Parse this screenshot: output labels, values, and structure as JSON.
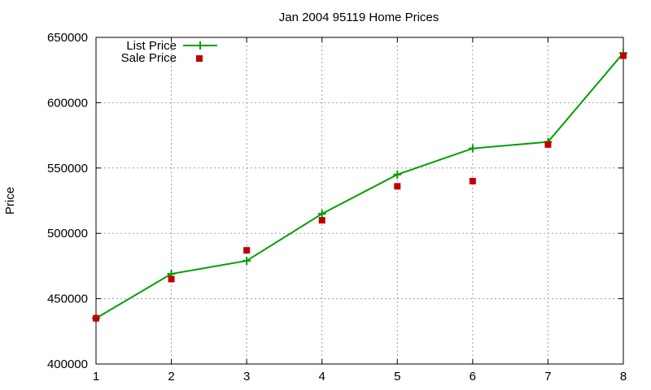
{
  "chart_data": {
    "type": "line",
    "title": "Jan 2004 95119 Home Prices",
    "xlabel": "",
    "ylabel": "Price",
    "x": [
      1,
      2,
      3,
      4,
      5,
      6,
      7,
      8
    ],
    "xlim": [
      1,
      8
    ],
    "ylim": [
      400000,
      650000
    ],
    "xticks": [
      "1",
      "2",
      "3",
      "4",
      "5",
      "6",
      "7",
      "8"
    ],
    "yticks": [
      "400000",
      "450000",
      "500000",
      "550000",
      "600000",
      "650000"
    ],
    "grid": true,
    "legend_position": "top-left",
    "series": [
      {
        "name": "List Price",
        "style": "lines+points",
        "marker": "plus",
        "color": "#00a000",
        "values": [
          435000,
          469000,
          479000,
          515000,
          545000,
          565000,
          570000,
          638000
        ]
      },
      {
        "name": "Sale Price",
        "style": "points",
        "marker": "square",
        "color": "#c00000",
        "values": [
          435000,
          465000,
          487000,
          510000,
          536000,
          540000,
          568000,
          636000
        ]
      }
    ]
  }
}
